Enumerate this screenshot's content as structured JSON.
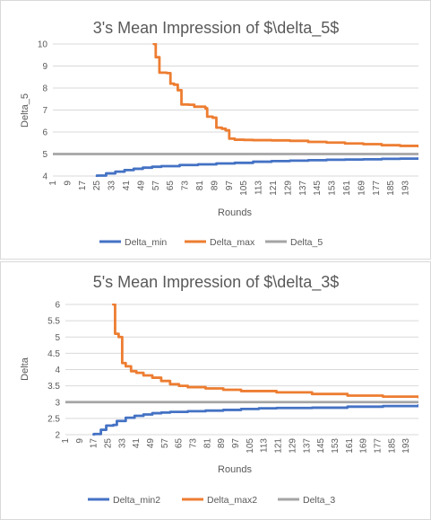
{
  "chart_data": [
    {
      "type": "line",
      "title": "3's Mean Impression of $\\delta_5$",
      "xlabel": "Rounds",
      "ylabel": "Delta_5",
      "ylim": [
        4,
        10
      ],
      "yticks": [
        4,
        5,
        6,
        7,
        8,
        9,
        10
      ],
      "xlim": [
        1,
        200
      ],
      "xticks": [
        1,
        9,
        17,
        25,
        33,
        41,
        49,
        57,
        65,
        73,
        81,
        89,
        97,
        105,
        113,
        121,
        129,
        137,
        145,
        153,
        161,
        169,
        177,
        185,
        193
      ],
      "grid": "horizontal",
      "legend_position": "bottom",
      "series": [
        {
          "name": "Delta_min",
          "color": "#4472c4",
          "points": [
            [
              1,
              3.2
            ],
            [
              15,
              3.7
            ],
            [
              20,
              3.9
            ],
            [
              25,
              4.02
            ],
            [
              30,
              4.12
            ],
            [
              35,
              4.2
            ],
            [
              40,
              4.27
            ],
            [
              45,
              4.33
            ],
            [
              50,
              4.38
            ],
            [
              55,
              4.42
            ],
            [
              60,
              4.45
            ],
            [
              70,
              4.5
            ],
            [
              80,
              4.53
            ],
            [
              90,
              4.57
            ],
            [
              100,
              4.6
            ],
            [
              110,
              4.65
            ],
            [
              120,
              4.68
            ],
            [
              130,
              4.7
            ],
            [
              140,
              4.72
            ],
            [
              150,
              4.74
            ],
            [
              160,
              4.75
            ],
            [
              170,
              4.76
            ],
            [
              180,
              4.78
            ],
            [
              190,
              4.79
            ],
            [
              200,
              4.8
            ]
          ]
        },
        {
          "name": "Delta_max",
          "color": "#ed7d31",
          "points": [
            [
              55,
              10.5
            ],
            [
              56,
              10
            ],
            [
              57,
              9.4
            ],
            [
              59,
              8.7
            ],
            [
              63,
              8.68
            ],
            [
              65,
              8.2
            ],
            [
              67,
              8.15
            ],
            [
              69,
              7.9
            ],
            [
              71,
              7.25
            ],
            [
              75,
              7.24
            ],
            [
              78,
              7.15
            ],
            [
              84,
              7.08
            ],
            [
              85,
              6.7
            ],
            [
              88,
              6.65
            ],
            [
              90,
              6.2
            ],
            [
              93,
              6.15
            ],
            [
              95,
              6.08
            ],
            [
              97,
              5.7
            ],
            [
              100,
              5.65
            ],
            [
              105,
              5.64
            ],
            [
              110,
              5.63
            ],
            [
              120,
              5.62
            ],
            [
              130,
              5.6
            ],
            [
              140,
              5.55
            ],
            [
              150,
              5.52
            ],
            [
              160,
              5.48
            ],
            [
              170,
              5.45
            ],
            [
              180,
              5.4
            ],
            [
              190,
              5.37
            ],
            [
              200,
              5.35
            ]
          ]
        },
        {
          "name": "Delta_5",
          "color": "#a5a5a5",
          "points": [
            [
              1,
              5
            ],
            [
              200,
              5
            ]
          ]
        }
      ]
    },
    {
      "type": "line",
      "title": "5's Mean Impression of $\\delta_3$",
      "xlabel": "Rounds",
      "ylabel": "Delta",
      "ylim": [
        2,
        6
      ],
      "yticks": [
        2,
        2.5,
        3,
        3.5,
        4,
        4.5,
        5,
        5.5,
        6
      ],
      "ytick_labels": [
        "2",
        "2.5",
        "3",
        "3.5",
        "4",
        "4.5",
        "5",
        "5.5",
        "6"
      ],
      "xlim": [
        1,
        200
      ],
      "xticks": [
        1,
        9,
        17,
        25,
        33,
        41,
        49,
        57,
        65,
        73,
        81,
        89,
        97,
        105,
        113,
        121,
        129,
        137,
        145,
        153,
        161,
        169,
        177,
        185,
        193
      ],
      "grid": "horizontal",
      "legend_position": "bottom",
      "series": [
        {
          "name": "Delta_min2",
          "color": "#4472c4",
          "points": [
            [
              1,
              1.5
            ],
            [
              12,
              1.9
            ],
            [
              17,
              2.02
            ],
            [
              21,
              2.15
            ],
            [
              24,
              2.28
            ],
            [
              28,
              2.3
            ],
            [
              30,
              2.42
            ],
            [
              35,
              2.52
            ],
            [
              40,
              2.58
            ],
            [
              45,
              2.62
            ],
            [
              50,
              2.66
            ],
            [
              55,
              2.68
            ],
            [
              60,
              2.7
            ],
            [
              70,
              2.72
            ],
            [
              80,
              2.74
            ],
            [
              90,
              2.76
            ],
            [
              100,
              2.79
            ],
            [
              110,
              2.81
            ],
            [
              120,
              2.82
            ],
            [
              140,
              2.83
            ],
            [
              160,
              2.86
            ],
            [
              180,
              2.88
            ],
            [
              200,
              2.9
            ]
          ]
        },
        {
          "name": "Delta_max2",
          "color": "#ed7d31",
          "points": [
            [
              27,
              6.5
            ],
            [
              28,
              6.0
            ],
            [
              29,
              5.1
            ],
            [
              31,
              5.0
            ],
            [
              33,
              4.2
            ],
            [
              35,
              4.1
            ],
            [
              38,
              3.95
            ],
            [
              41,
              3.9
            ],
            [
              45,
              3.82
            ],
            [
              50,
              3.75
            ],
            [
              55,
              3.65
            ],
            [
              60,
              3.55
            ],
            [
              65,
              3.5
            ],
            [
              70,
              3.46
            ],
            [
              80,
              3.42
            ],
            [
              90,
              3.38
            ],
            [
              100,
              3.34
            ],
            [
              120,
              3.3
            ],
            [
              140,
              3.25
            ],
            [
              160,
              3.2
            ],
            [
              180,
              3.17
            ],
            [
              200,
              3.15
            ]
          ]
        },
        {
          "name": "Delta_3",
          "color": "#a5a5a5",
          "points": [
            [
              1,
              3
            ],
            [
              200,
              3
            ]
          ]
        }
      ]
    }
  ]
}
